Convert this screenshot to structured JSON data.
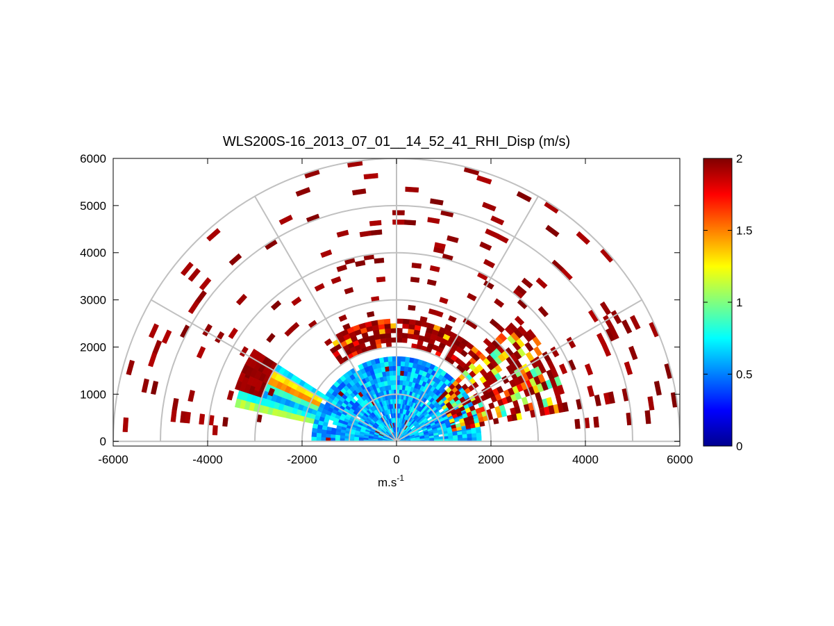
{
  "chart_data": {
    "type": "heatmap",
    "subtype": "polar-rhi-sector",
    "title": "WLS200S-16_2013_07_01__14_52_41_RHI_Disp (m/s)",
    "xlabel_base": "m.s",
    "xlabel_sup": "-1",
    "ylabel": "",
    "xlim": [
      -6000,
      6000
    ],
    "ylim": [
      -100,
      6000
    ],
    "x_ticks": [
      -6000,
      -4000,
      -2000,
      0,
      2000,
      4000,
      6000
    ],
    "x_tick_labels": [
      "-6000",
      "-4000",
      "-2000",
      "0",
      "2000",
      "4000",
      "6000"
    ],
    "y_ticks": [
      0,
      1000,
      2000,
      3000,
      4000,
      5000,
      6000
    ],
    "y_tick_labels": [
      "0",
      "1000",
      "2000",
      "3000",
      "4000",
      "5000",
      "6000"
    ],
    "polar_grid": {
      "range_rings_m": [
        1000,
        2000,
        3000,
        4000,
        5000,
        6000
      ],
      "spokes_deg": [
        0,
        30,
        60,
        90,
        120,
        150,
        180
      ]
    },
    "colorbar": {
      "colormap": "jet",
      "clim": [
        0,
        2
      ],
      "ticks": [
        0,
        0.5,
        1,
        1.5,
        2
      ],
      "tick_labels": [
        "0",
        "0.5",
        "1",
        "1.5",
        "2"
      ]
    },
    "regions": [
      {
        "name": "core",
        "angle_deg": [
          0,
          180
        ],
        "range_m": [
          0,
          1800
        ],
        "value": 0.6,
        "spread": 0.2,
        "density": 0.98,
        "hot_prob": 0.02
      },
      {
        "name": "left-shell",
        "angle_deg": [
          147,
          168
        ],
        "range_m": [
          1800,
          3500
        ],
        "value": 0.8,
        "banded": true,
        "density": 1.0,
        "hot_prob": 0.0
      },
      {
        "name": "left-edge",
        "angle_deg": [
          147,
          162
        ],
        "range_m": [
          3000,
          3550
        ],
        "value": 2.0,
        "spread": 0.0,
        "density": 1.0,
        "hot_prob": 1.0
      },
      {
        "name": "cap",
        "angle_deg": [
          45,
          125
        ],
        "range_m": [
          2000,
          2600
        ],
        "value": 1.7,
        "spread": 0.4,
        "density": 0.8,
        "hot_prob": 0.6
      },
      {
        "name": "right-wedge",
        "angle_deg": [
          10,
          45
        ],
        "range_m": [
          1200,
          3700
        ],
        "value": 1.3,
        "spread": 0.5,
        "density": 0.75,
        "hot_prob": 0.55
      },
      {
        "name": "scatter",
        "angle_deg": [
          4,
          176
        ],
        "range_m": [
          2600,
          6000
        ],
        "value": 2.0,
        "spread": 0.0,
        "density": 0.07,
        "hot_prob": 0.95
      }
    ]
  }
}
